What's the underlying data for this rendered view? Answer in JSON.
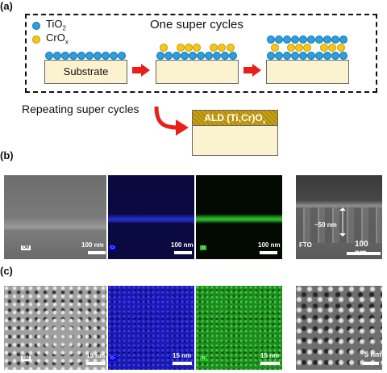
{
  "panels": {
    "a": "(a)",
    "b": "(b)",
    "c": "(c)"
  },
  "legend": {
    "tio2": "TiO",
    "tio2_sub": "2",
    "crox": "CrO",
    "crox_sub": "x"
  },
  "schematic": {
    "title": "One super cycles",
    "substrate": "Substrate",
    "repeat": "Repeating super cycles",
    "final_label_main": "ALD (Ti,Cr)O",
    "final_label_sub": "x"
  },
  "row_b": {
    "tags": [
      "OM",
      "Cr",
      "Ti",
      "FTO"
    ],
    "scales": [
      "100 nm",
      "100 nm",
      "100 nm",
      "100 nm"
    ],
    "thickness": "~50 nm"
  },
  "row_c": {
    "tags": [
      "OM",
      "Cr",
      "Ti"
    ],
    "scales": [
      "15 nm",
      "15 nm",
      "15 nm",
      "5 nm"
    ]
  },
  "colors": {
    "tio2": "#2aa0e0",
    "crox": "#f5c518",
    "arrow": "#e8201a",
    "substrate": "#fbf2cf",
    "final_top": "#c8a317"
  }
}
